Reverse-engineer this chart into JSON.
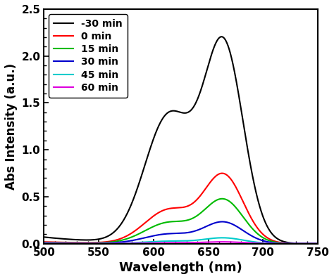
{
  "title": "",
  "xlabel": "Wavelength (nm)",
  "ylabel": "Abs Intensity (a.u.)",
  "xlim": [
    500,
    750
  ],
  "ylim": [
    0,
    2.5
  ],
  "yticks": [
    0.0,
    0.5,
    1.0,
    1.5,
    2.0,
    2.5
  ],
  "xticks": [
    500,
    550,
    600,
    650,
    700,
    750
  ],
  "series": [
    {
      "label": "-30 min",
      "color": "#000000",
      "linewidth": 1.5,
      "peak1_x": 614,
      "peak1_y": 1.35,
      "peak2_x": 664,
      "peak2_y": 2.09,
      "sigma1": 22.0,
      "sigma2": 18.0,
      "baseline": 0.07,
      "bl_decay": 55
    },
    {
      "label": "0 min",
      "color": "#ff0000",
      "linewidth": 1.5,
      "peak1_x": 614,
      "peak1_y": 0.355,
      "peak2_x": 664,
      "peak2_y": 0.72,
      "sigma1": 22.0,
      "sigma2": 18.0,
      "baseline": 0.018,
      "bl_decay": 55
    },
    {
      "label": "15 min",
      "color": "#00bb00",
      "linewidth": 1.5,
      "peak1_x": 614,
      "peak1_y": 0.22,
      "peak2_x": 664,
      "peak2_y": 0.46,
      "sigma1": 22.0,
      "sigma2": 18.0,
      "baseline": 0.012,
      "bl_decay": 55
    },
    {
      "label": "30 min",
      "color": "#0000cc",
      "linewidth": 1.5,
      "peak1_x": 614,
      "peak1_y": 0.1,
      "peak2_x": 664,
      "peak2_y": 0.225,
      "sigma1": 22.0,
      "sigma2": 18.0,
      "baseline": 0.008,
      "bl_decay": 55
    },
    {
      "label": "45 min",
      "color": "#00cccc",
      "linewidth": 1.5,
      "peak1_x": 614,
      "peak1_y": 0.025,
      "peak2_x": 664,
      "peak2_y": 0.06,
      "sigma1": 22.0,
      "sigma2": 18.0,
      "baseline": 0.004,
      "bl_decay": 55
    },
    {
      "label": "60 min",
      "color": "#dd00dd",
      "linewidth": 1.5,
      "peak1_x": 614,
      "peak1_y": 0.008,
      "peak2_x": 664,
      "peak2_y": 0.018,
      "sigma1": 22.0,
      "sigma2": 18.0,
      "baseline": 0.002,
      "bl_decay": 55
    }
  ],
  "background_color": "#ffffff",
  "legend_loc": "upper left",
  "legend_fontsize": 10
}
